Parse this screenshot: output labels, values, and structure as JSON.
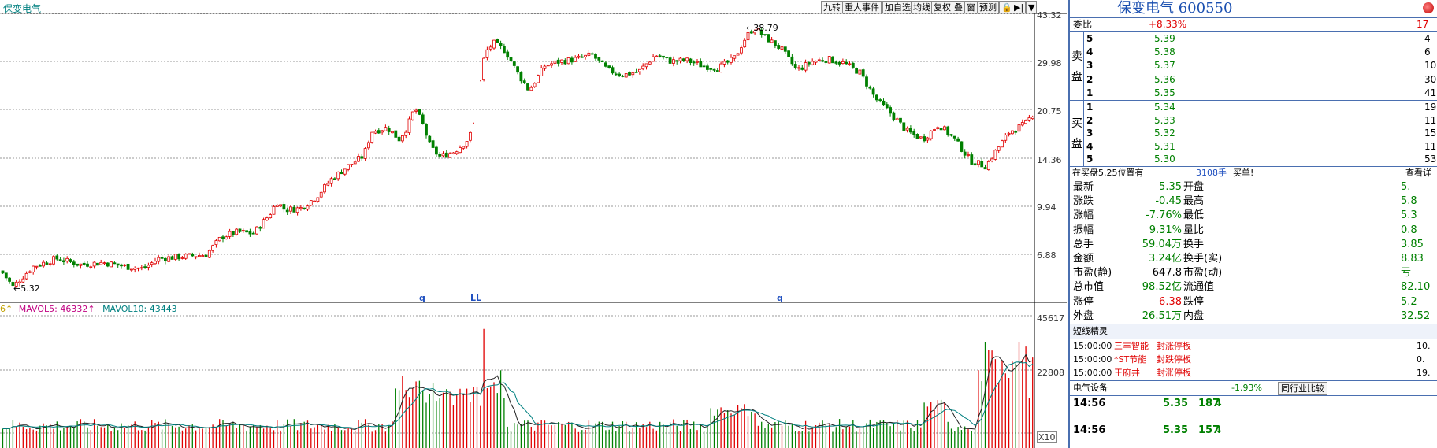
{
  "header": {
    "stock_label": "保变电气"
  },
  "toolbar": {
    "buttons": [
      "九转",
      "重大事件",
      "加自选",
      "均线",
      "复权",
      "叠",
      "窗",
      "预测",
      "🔒",
      "▶|",
      "▼"
    ]
  },
  "price_axis": {
    "labels": [
      "43.32",
      "29.98",
      "20.75",
      "14.36",
      "9.94",
      "6.88"
    ],
    "scale": "log"
  },
  "annotations": {
    "high_label": "38.79",
    "low_label": "5.32",
    "marker_q1": "q",
    "marker_ll": "LL",
    "marker_q2": "q"
  },
  "volume": {
    "legend_prefix": "6↑",
    "mavol5_label": "MAVOL5: 46332↑",
    "mavol10_label": "MAVOL10: 43443",
    "axis_labels": [
      "45617",
      "22808",
      "X10"
    ]
  },
  "quote": {
    "title": "保变电气 600550",
    "webi_label": "委比",
    "webi_value": "+8.33%",
    "webi_diff": "17",
    "sell_label": [
      "卖",
      "盘"
    ],
    "buy_label": [
      "买",
      "盘"
    ],
    "sell": [
      {
        "level": "5",
        "price": "5.39",
        "vol": "4"
      },
      {
        "level": "4",
        "price": "5.38",
        "vol": "6"
      },
      {
        "level": "3",
        "price": "5.37",
        "vol": "10"
      },
      {
        "level": "2",
        "price": "5.36",
        "vol": "30"
      },
      {
        "level": "1",
        "price": "5.35",
        "vol": "41"
      }
    ],
    "buy": [
      {
        "level": "1",
        "price": "5.34",
        "vol": "19"
      },
      {
        "level": "2",
        "price": "5.33",
        "vol": "11"
      },
      {
        "level": "3",
        "price": "5.32",
        "vol": "15"
      },
      {
        "level": "4",
        "price": "5.31",
        "vol": "11"
      },
      {
        "level": "5",
        "price": "5.30",
        "vol": "53"
      }
    ],
    "notice_text": "在买盘5.25位置有",
    "notice_vol": "3108手",
    "notice_type": "买单!",
    "notice_link": "查看详",
    "stats": [
      {
        "l1": "最新",
        "v1": "5.35",
        "c1": "green",
        "l2": "开盘",
        "v2": "5."
      },
      {
        "l1": "涨跌",
        "v1": "-0.45",
        "c1": "green",
        "l2": "最高",
        "v2": "5.8"
      },
      {
        "l1": "涨幅",
        "v1": "-7.76%",
        "c1": "green",
        "l2": "最低",
        "v2": "5.3"
      },
      {
        "l1": "振幅",
        "v1": "9.31%",
        "c1": "green",
        "l2": "量比",
        "v2": "0.8"
      },
      {
        "l1": "总手",
        "v1": "59.04万",
        "c1": "green",
        "l2": "换手",
        "v2": "3.85"
      },
      {
        "l1": "金额",
        "v1": "3.24亿",
        "c1": "green",
        "l2": "换手(实)",
        "v2": "8.83"
      },
      {
        "l1": "市盈(静)",
        "v1": "647.8",
        "c1": "black",
        "l2": "市盈(动)",
        "v2": "亏"
      },
      {
        "l1": "总市值",
        "v1": "98.52亿",
        "c1": "green",
        "l2": "流通值",
        "v2": "82.10"
      },
      {
        "l1": "涨停",
        "v1": "6.38",
        "c1": "red",
        "l2": "跌停",
        "v2": "5.2"
      },
      {
        "l1": "外盘",
        "v1": "26.51万",
        "c1": "green",
        "l2": "内盘",
        "v2": "32.52"
      }
    ],
    "genie_title": "短线精灵",
    "genie": [
      {
        "time": "15:00:00",
        "name": "三丰智能",
        "event": "封涨停板",
        "val": "10."
      },
      {
        "time": "15:00:00",
        "name": "*ST节能",
        "event": "封跌停板",
        "val": "0."
      },
      {
        "time": "15:00:00",
        "name": "王府井",
        "event": "封涨停板",
        "val": "19."
      }
    ],
    "sector_name": "电气设备",
    "sector_change": "-1.93%",
    "sector_link": "同行业比较",
    "ticks": [
      {
        "time": "14:56",
        "price": "5.35",
        "vol": "187",
        "dir": "↓"
      },
      {
        "time": "14:56",
        "price": "5.35",
        "vol": "157",
        "dir": "↓"
      }
    ]
  },
  "colors": {
    "up": "#e00000",
    "down": "#008000",
    "accent": "#2050c0",
    "grid": "#b0b0b0"
  },
  "chart_data": {
    "type": "candlestick",
    "y_scale": "log",
    "ylim": [
      5.32,
      43.32
    ],
    "path": [
      [
        0,
        6.0
      ],
      [
        15,
        5.32
      ],
      [
        40,
        6.2
      ],
      [
        70,
        6.6
      ],
      [
        100,
        6.3
      ],
      [
        130,
        6.4
      ],
      [
        160,
        6.2
      ],
      [
        180,
        6.1
      ],
      [
        200,
        6.6
      ],
      [
        230,
        6.7
      ],
      [
        260,
        6.8
      ],
      [
        280,
        7.8
      ],
      [
        300,
        8.1
      ],
      [
        320,
        8.0
      ],
      [
        340,
        9.2
      ],
      [
        350,
        10.2
      ],
      [
        360,
        9.6
      ],
      [
        380,
        9.7
      ],
      [
        400,
        10.6
      ],
      [
        420,
        12.2
      ],
      [
        440,
        13.4
      ],
      [
        460,
        14.5
      ],
      [
        470,
        17.5
      ],
      [
        490,
        18.0
      ],
      [
        505,
        16.5
      ],
      [
        515,
        18.0
      ],
      [
        525,
        21.0
      ],
      [
        535,
        18.5
      ],
      [
        545,
        15.5
      ],
      [
        557,
        14.4
      ],
      [
        575,
        15.0
      ],
      [
        590,
        16.2
      ],
      [
        598,
        17.5
      ],
      [
        614,
        32.0
      ],
      [
        625,
        34.5
      ],
      [
        640,
        32.5
      ],
      [
        655,
        27.5
      ],
      [
        670,
        24.0
      ],
      [
        690,
        29.0
      ],
      [
        710,
        30.0
      ],
      [
        730,
        30.5
      ],
      [
        750,
        31.5
      ],
      [
        770,
        28.0
      ],
      [
        790,
        27.0
      ],
      [
        810,
        27.8
      ],
      [
        830,
        31.5
      ],
      [
        850,
        30.0
      ],
      [
        870,
        30.2
      ],
      [
        890,
        29.0
      ],
      [
        910,
        28.5
      ],
      [
        930,
        30.5
      ],
      [
        945,
        36.0
      ],
      [
        955,
        38.79
      ],
      [
        970,
        36.0
      ],
      [
        990,
        33.0
      ],
      [
        1010,
        28.0
      ],
      [
        1030,
        30.0
      ],
      [
        1050,
        30.5
      ],
      [
        1070,
        29.5
      ],
      [
        1090,
        27.5
      ],
      [
        1110,
        22.5
      ],
      [
        1130,
        20.0
      ],
      [
        1150,
        17.5
      ],
      [
        1170,
        16.5
      ],
      [
        1190,
        18.5
      ],
      [
        1210,
        16.5
      ],
      [
        1230,
        14.0
      ],
      [
        1250,
        13.4
      ],
      [
        1262,
        15.0
      ],
      [
        1280,
        17.5
      ],
      [
        1300,
        18.5
      ],
      [
        1312,
        20.5
      ]
    ]
  }
}
